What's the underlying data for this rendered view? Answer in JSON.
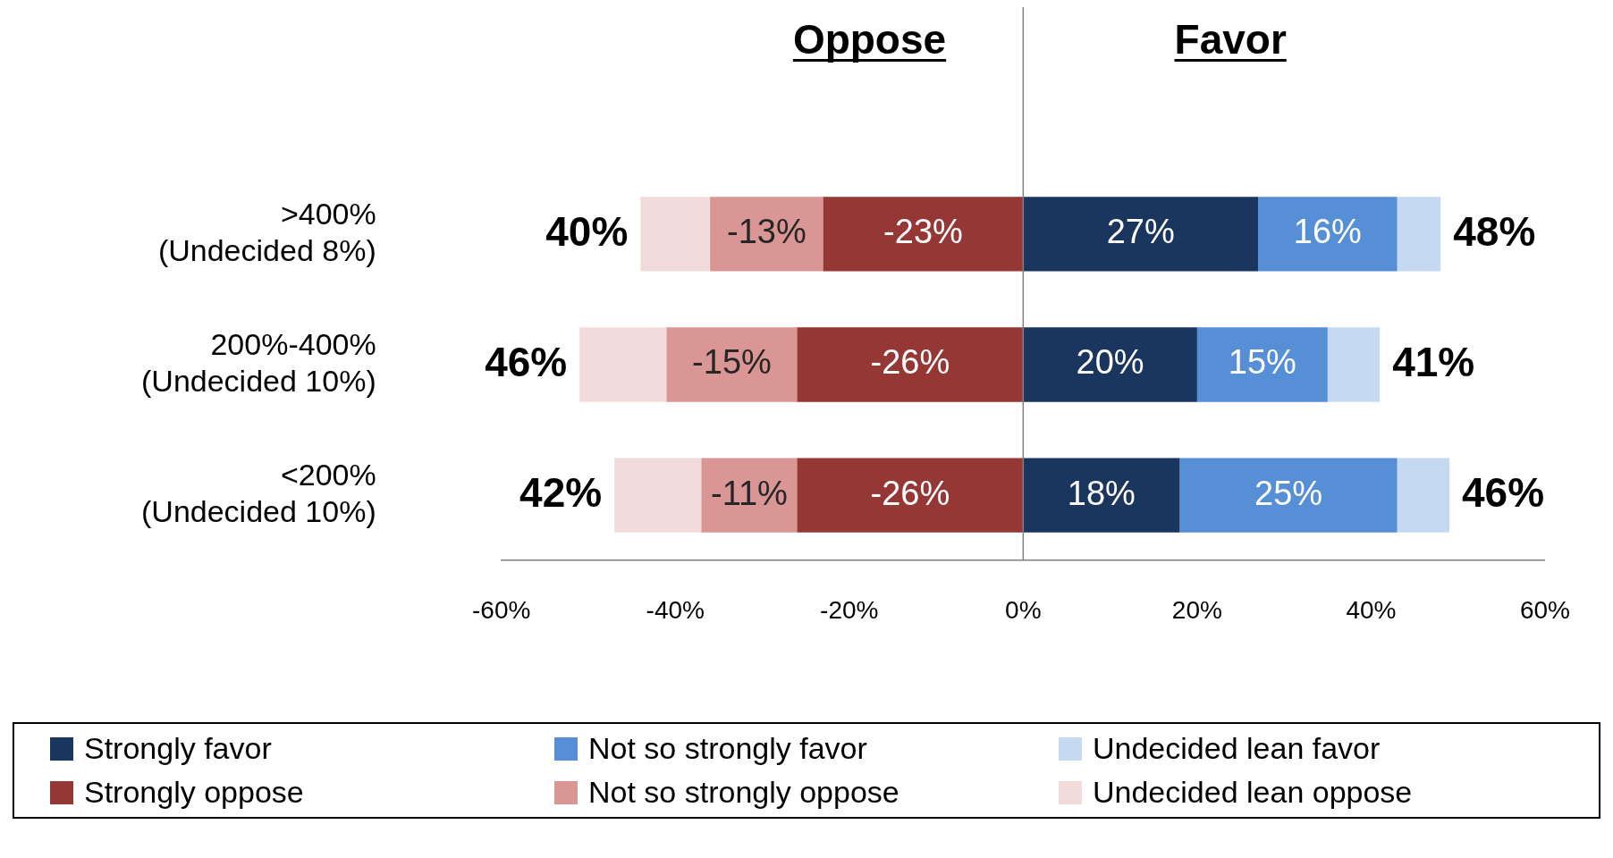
{
  "chart_data": {
    "type": "bar",
    "orientation": "horizontal",
    "stacked": true,
    "categories": [
      ">400%\n(Undecided 8%)",
      "200%-400%\n(Undecided 10%)",
      "<200%\n(Undecided 10%)"
    ],
    "series": [
      {
        "name": "Strongly favor",
        "color": "#1a355e",
        "values": [
          27,
          20,
          18
        ],
        "value_labels": [
          "27%",
          "20%",
          "18%"
        ]
      },
      {
        "name": "Not so strongly favor",
        "color": "#568fd6",
        "values": [
          16,
          15,
          25
        ],
        "value_labels": [
          "16%",
          "15%",
          "25%"
        ]
      },
      {
        "name": "Undecided lean favor",
        "color": "#c5d9f1",
        "values": [
          5,
          6,
          6
        ]
      },
      {
        "name": "Strongly oppose",
        "color": "#953735",
        "values": [
          -23,
          -26,
          -26
        ],
        "value_labels": [
          "-23%",
          "-26%",
          "-26%"
        ]
      },
      {
        "name": "Not so strongly oppose",
        "color": "#d99694",
        "values": [
          -13,
          -15,
          -11
        ],
        "value_labels": [
          "-13%",
          "-15%",
          "-11%"
        ]
      },
      {
        "name": "Undecided lean oppose",
        "color": "#f2dcdb",
        "values": [
          -8,
          -10,
          -10
        ]
      }
    ],
    "xlim": [
      -60,
      60
    ],
    "xticks": [
      {
        "value": -60,
        "label": "-60%"
      },
      {
        "value": -40,
        "label": "-40%"
      },
      {
        "value": -20,
        "label": "-20%"
      },
      {
        "value": 0,
        "label": "0%"
      },
      {
        "value": 20,
        "label": "20%"
      },
      {
        "value": 40,
        "label": "40%"
      },
      {
        "value": 60,
        "label": "60%"
      }
    ],
    "ref_lines": [
      {
        "axis": "x",
        "value": 0,
        "color": "#808080"
      }
    ],
    "annotations": [
      "Oppose",
      "Favor",
      "40%",
      "48%",
      "46%",
      "41%",
      "42%",
      "46%"
    ],
    "grid": false,
    "legend": "bottom"
  }
}
